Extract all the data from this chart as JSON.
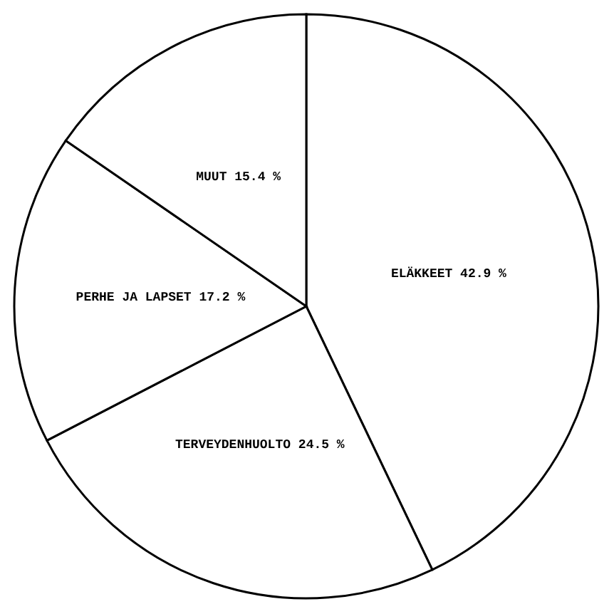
{
  "chart_data": {
    "type": "pie",
    "categories": [
      "ELÄKKEET",
      "TERVEYDENHUOLTO",
      "PERHE JA LAPSET",
      "MUUT"
    ],
    "values": [
      42.9,
      24.5,
      17.2,
      15.4
    ],
    "value_labels": [
      "42.9 %",
      "24.5 %",
      "17.2 %",
      "15.4 %"
    ],
    "colors": [
      "#ffffff",
      "#ffffff",
      "#ffffff",
      "#ffffff"
    ]
  }
}
